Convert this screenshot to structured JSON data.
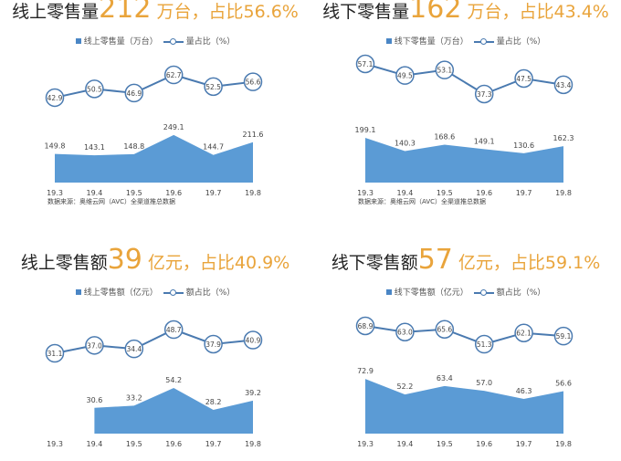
{
  "chart_data": [
    {
      "type": "area+line",
      "title": {
        "prefix": "线上零售量",
        "number": "212",
        "suffix": " 万台，占比56.6%"
      },
      "legend": {
        "bar": "线上零售量（万台）",
        "line": "量占比（%）"
      },
      "categories": [
        "19.3",
        "19.4",
        "19.5",
        "19.6",
        "19.7",
        "19.8"
      ],
      "series": [
        {
          "name": "线上零售量（万台）",
          "type": "area",
          "values": [
            149.8,
            143.1,
            148.8,
            249.1,
            144.7,
            211.6
          ],
          "ylim": [
            0,
            287
          ]
        },
        {
          "name": "量占比（%）",
          "type": "line",
          "values": [
            42.9,
            50.5,
            46.9,
            62.7,
            52.5,
            56.6
          ],
          "ylim": [
            36.5,
            76.2
          ]
        }
      ],
      "source": "数据来源：奥维云网（AVC）全渠道推总数据"
    },
    {
      "type": "area+line",
      "title": {
        "prefix": "线下零售量",
        "number": "162",
        "suffix": " 万台，占比43.4%"
      },
      "legend": {
        "bar": "线下零售量（万台）",
        "line": "量占比（%）"
      },
      "categories": [
        "19.3",
        "19.4",
        "19.5",
        "19.6",
        "19.7",
        "19.8"
      ],
      "series": [
        {
          "name": "线下零售量（万台）",
          "type": "area",
          "values": [
            199.1,
            140.3,
            168.6,
            149.1,
            130.6,
            162.3
          ],
          "ylim": [
            0,
            244
          ]
        },
        {
          "name": "量占比（%）",
          "type": "line",
          "values": [
            57.1,
            49.5,
            53.1,
            37.3,
            47.5,
            43.4
          ],
          "ylim": [
            30.1,
            60.1
          ]
        }
      ],
      "source": "数据来源：奥维云网（AVC）全渠道推总数据"
    },
    {
      "type": "area+line",
      "title": {
        "prefix": "线上零售额",
        "number": "39",
        "suffix": " 亿元，占比40.9%"
      },
      "legend": {
        "bar": "线上零售额（亿元）",
        "line": "额占比（%）"
      },
      "categories": [
        "19.3",
        "19.4",
        "19.5",
        "19.6",
        "19.7",
        "19.8"
      ],
      "series": [
        {
          "name": "线上零售额（亿元）",
          "type": "area",
          "values": [
            null,
            30.6,
            33.2,
            54.2,
            28.2,
            39.2
          ],
          "ylim": [
            0,
            65
          ]
        },
        {
          "name": "额占比（%）",
          "type": "line",
          "values": [
            31.1,
            37.0,
            34.4,
            48.7,
            37.9,
            40.9
          ],
          "ylim": [
            29.1,
            62.9
          ]
        }
      ]
    },
    {
      "type": "area+line",
      "title": {
        "prefix": "线下零售额",
        "number": "57",
        "suffix": " 亿元，占比59.1%"
      },
      "legend": {
        "bar": "线下零售额（亿元）",
        "line": "额占比（%）"
      },
      "categories": [
        "19.3",
        "19.4",
        "19.5",
        "19.6",
        "19.7",
        "19.8"
      ],
      "series": [
        {
          "name": "线下零售额（亿元）",
          "type": "area",
          "values": [
            72.9,
            52.2,
            63.4,
            57.0,
            46.3,
            56.6
          ],
          "ylim": [
            0,
            73
          ]
        },
        {
          "name": "额占比（%）",
          "type": "line",
          "values": [
            68.9,
            63.0,
            65.6,
            51.3,
            62.1,
            59.1
          ],
          "ylim": [
            39.9,
            83.8
          ]
        }
      ]
    }
  ],
  "colors": {
    "area": "#5b9bd5",
    "line": "#4a7ab0",
    "highlight": "#e9a43b"
  }
}
